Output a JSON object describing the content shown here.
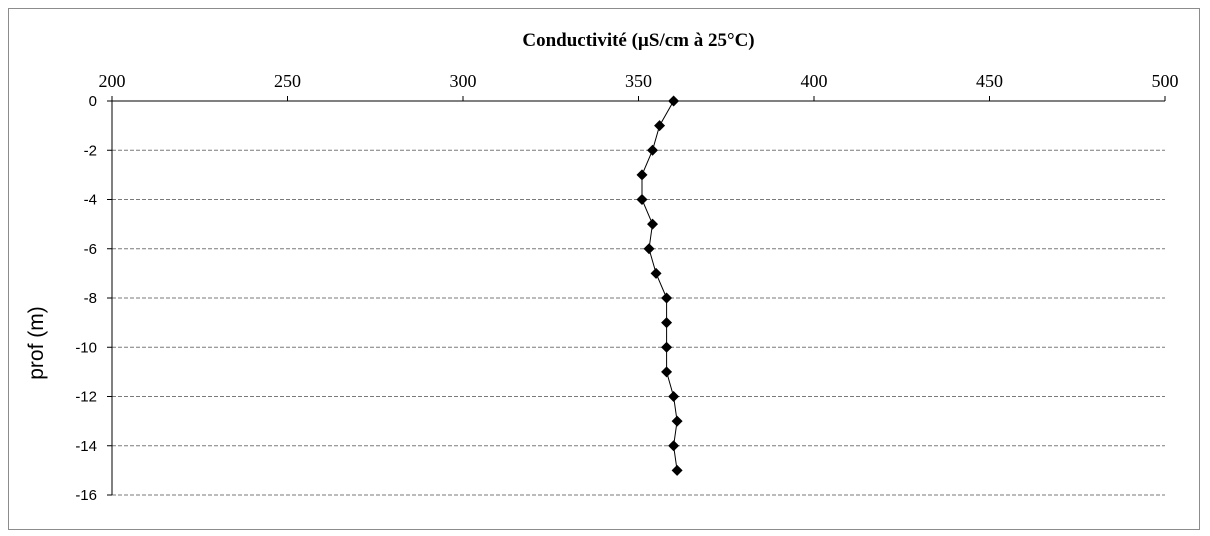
{
  "chart_data": {
    "type": "scatter",
    "title": "Conductivité (µS/cm à 25°C)",
    "xlabel": "Conductivité (µS/cm à 25°C)",
    "ylabel": "prof (m)",
    "xlim": [
      200,
      500
    ],
    "ylim": [
      -16,
      0
    ],
    "x_axis_position": "top",
    "x_ticks": [
      200,
      250,
      300,
      350,
      400,
      450,
      500
    ],
    "y_ticks": [
      0,
      -2,
      -4,
      -6,
      -8,
      -10,
      -12,
      -14,
      -16
    ],
    "grid": "horizontal dashed",
    "legend": "none",
    "series": [
      {
        "marker": "diamond",
        "line": true,
        "color": "#000000",
        "points": [
          {
            "x": 360,
            "y": 0
          },
          {
            "x": 356,
            "y": -1
          },
          {
            "x": 354,
            "y": -2
          },
          {
            "x": 351,
            "y": -3
          },
          {
            "x": 351,
            "y": -4
          },
          {
            "x": 354,
            "y": -5
          },
          {
            "x": 353,
            "y": -6
          },
          {
            "x": 355,
            "y": -7
          },
          {
            "x": 358,
            "y": -8
          },
          {
            "x": 358,
            "y": -9
          },
          {
            "x": 358,
            "y": -10
          },
          {
            "x": 358,
            "y": -11
          },
          {
            "x": 360,
            "y": -12
          },
          {
            "x": 361,
            "y": -13
          },
          {
            "x": 360,
            "y": -14
          },
          {
            "x": 361,
            "y": -15
          }
        ]
      }
    ]
  }
}
